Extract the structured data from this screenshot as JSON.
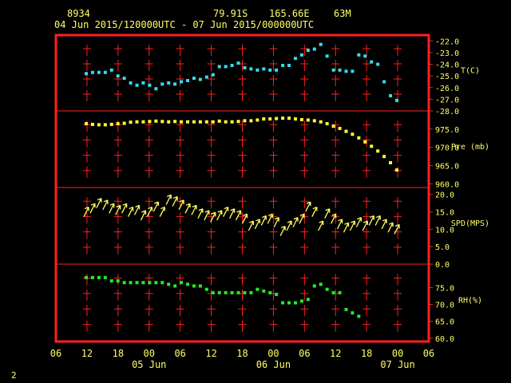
{
  "header": {
    "station_id": "8934",
    "lat": "79.91S",
    "lon": "165.66E",
    "elev": "63M",
    "time_range": "04 Jun 2015/120000UTC - 07 Jun 2015/000000UTC"
  },
  "footer": {
    "page_number": "2"
  },
  "colors": {
    "frame": "#ff2020",
    "text": "#ffff66",
    "temp": "#33ddee",
    "pres": "#ffff33",
    "wind": "#ffff66",
    "rh": "#22ee22"
  },
  "chart_data": {
    "type": "scatter",
    "x_ticks": [
      "06",
      "12",
      "18",
      "00",
      "06",
      "12",
      "18",
      "00",
      "06",
      "12",
      "18",
      "00",
      "06"
    ],
    "date_labels": [
      "05 Jun",
      "06 Jun",
      "07 Jun"
    ],
    "x_range_hours": [
      -6,
      66
    ],
    "panels": [
      {
        "name": "temperature",
        "ylabel": "T(C)",
        "ylim": [
          -28.0,
          -21.5
        ],
        "ticks": [
          -22.0,
          -23.0,
          -24.0,
          -25.0,
          -26.0,
          -27.0,
          -28.0
        ],
        "points": [
          [
            1,
            -24.8
          ],
          [
            2,
            -24.7
          ],
          [
            3,
            -24.7
          ],
          [
            4,
            -24.7
          ],
          [
            5,
            -24.5
          ],
          [
            6,
            -25.0
          ],
          [
            7,
            -25.2
          ],
          [
            8,
            -25.6
          ],
          [
            9,
            -25.8
          ],
          [
            10,
            -25.6
          ],
          [
            11,
            -25.8
          ],
          [
            12,
            -26.1
          ],
          [
            13,
            -25.7
          ],
          [
            14,
            -25.6
          ],
          [
            15,
            -25.7
          ],
          [
            16,
            -25.5
          ],
          [
            17,
            -25.4
          ],
          [
            18,
            -25.2
          ],
          [
            19,
            -25.3
          ],
          [
            20,
            -25.1
          ],
          [
            21,
            -24.9
          ],
          [
            22,
            -24.2
          ],
          [
            23,
            -24.2
          ],
          [
            24,
            -24.1
          ],
          [
            25,
            -23.9
          ],
          [
            26,
            -24.3
          ],
          [
            27,
            -24.4
          ],
          [
            28,
            -24.5
          ],
          [
            29,
            -24.4
          ],
          [
            30,
            -24.5
          ],
          [
            31,
            -24.5
          ],
          [
            32,
            -24.1
          ],
          [
            33,
            -24.1
          ],
          [
            34,
            -23.5
          ],
          [
            35,
            -23.2
          ],
          [
            36,
            -22.8
          ],
          [
            37,
            -22.7
          ],
          [
            38,
            -22.3
          ],
          [
            39,
            -23.3
          ],
          [
            40,
            -24.5
          ],
          [
            41,
            -24.5
          ],
          [
            42,
            -24.6
          ],
          [
            43,
            -24.6
          ],
          [
            44,
            -23.2
          ],
          [
            45,
            -23.3
          ],
          [
            46,
            -23.8
          ],
          [
            47,
            -24.0
          ],
          [
            48,
            -25.5
          ],
          [
            49,
            -26.7
          ],
          [
            50,
            -27.1
          ]
        ],
        "value_format": "1"
      },
      {
        "name": "pressure",
        "ylabel": "Pre (mb)",
        "ylim": [
          959.0,
          980.0
        ],
        "ticks": [
          975.0,
          970.0,
          965.0,
          960.0
        ],
        "points": [
          [
            1,
            976.5
          ],
          [
            2,
            976.3
          ],
          [
            3,
            976.2
          ],
          [
            4,
            976.2
          ],
          [
            5,
            976.3
          ],
          [
            6,
            976.5
          ],
          [
            7,
            976.6
          ],
          [
            8,
            976.9
          ],
          [
            9,
            977.0
          ],
          [
            10,
            977.0
          ],
          [
            11,
            977.1
          ],
          [
            12,
            977.2
          ],
          [
            13,
            977.1
          ],
          [
            14,
            977.0
          ],
          [
            15,
            977.1
          ],
          [
            16,
            977.0
          ],
          [
            17,
            977.0
          ],
          [
            18,
            977.0
          ],
          [
            19,
            977.0
          ],
          [
            20,
            977.0
          ],
          [
            21,
            977.0
          ],
          [
            22,
            977.2
          ],
          [
            23,
            977.0
          ],
          [
            24,
            977.0
          ],
          [
            25,
            977.1
          ],
          [
            26,
            977.3
          ],
          [
            27,
            977.3
          ],
          [
            28,
            977.5
          ],
          [
            29,
            977.8
          ],
          [
            30,
            977.8
          ],
          [
            31,
            977.9
          ],
          [
            32,
            978.0
          ],
          [
            33,
            978.0
          ],
          [
            34,
            977.8
          ],
          [
            35,
            977.6
          ],
          [
            36,
            977.5
          ],
          [
            37,
            977.3
          ],
          [
            38,
            977.0
          ],
          [
            39,
            976.5
          ],
          [
            40,
            975.8
          ],
          [
            41,
            975.2
          ],
          [
            42,
            974.4
          ],
          [
            43,
            973.6
          ],
          [
            44,
            972.6
          ],
          [
            45,
            971.5
          ],
          [
            46,
            970.3
          ],
          [
            47,
            969.0
          ],
          [
            48,
            967.5
          ],
          [
            49,
            965.8
          ],
          [
            50,
            963.8
          ]
        ]
      },
      {
        "name": "wind_speed",
        "ylabel": "SPD(MPS)",
        "ylim": [
          0.0,
          22.0
        ],
        "ticks": [
          20.0,
          15.0,
          10.0,
          5.0,
          0.0
        ],
        "points": [
          [
            1,
            15.0
          ],
          [
            2,
            16.0
          ],
          [
            3,
            17.5
          ],
          [
            4,
            17.0
          ],
          [
            5,
            16.0
          ],
          [
            6,
            15.5
          ],
          [
            7,
            16.0
          ],
          [
            8,
            15.0
          ],
          [
            9,
            15.5
          ],
          [
            10,
            14.0
          ],
          [
            11,
            15.0
          ],
          [
            12,
            16.5
          ],
          [
            13,
            15.0
          ],
          [
            14,
            18.5
          ],
          [
            15,
            18.0
          ],
          [
            16,
            17.0
          ],
          [
            17,
            16.0
          ],
          [
            18,
            15.5
          ],
          [
            19,
            14.5
          ],
          [
            20,
            14.0
          ],
          [
            21,
            13.5
          ],
          [
            22,
            14.0
          ],
          [
            23,
            15.0
          ],
          [
            24,
            14.5
          ],
          [
            25,
            14.0
          ],
          [
            26,
            13.0
          ],
          [
            27,
            11.0
          ],
          [
            28,
            11.5
          ],
          [
            29,
            12.5
          ],
          [
            30,
            13.0
          ],
          [
            31,
            12.0
          ],
          [
            32,
            9.5
          ],
          [
            33,
            11.0
          ],
          [
            34,
            12.0
          ],
          [
            35,
            13.0
          ],
          [
            36,
            16.5
          ],
          [
            37,
            15.0
          ],
          [
            38,
            11.0
          ],
          [
            39,
            14.5
          ],
          [
            40,
            13.0
          ],
          [
            41,
            11.5
          ],
          [
            42,
            10.5
          ],
          [
            43,
            11.0
          ],
          [
            44,
            12.0
          ],
          [
            45,
            11.0
          ],
          [
            46,
            12.5
          ],
          [
            47,
            12.5
          ],
          [
            48,
            11.5
          ],
          [
            49,
            10.5
          ],
          [
            50,
            10.0
          ]
        ]
      },
      {
        "name": "relative_humidity",
        "ylabel": "RH(%)",
        "ylim": [
          59.0,
          82.0
        ],
        "ticks": [
          75.0,
          70.0,
          65.0,
          60.0
        ],
        "points": [
          [
            1,
            78.0
          ],
          [
            2,
            78.0
          ],
          [
            3,
            78.0
          ],
          [
            4,
            78.0
          ],
          [
            5,
            77.0
          ],
          [
            6,
            77.0
          ],
          [
            7,
            76.5
          ],
          [
            8,
            76.5
          ],
          [
            9,
            76.5
          ],
          [
            10,
            76.5
          ],
          [
            11,
            76.5
          ],
          [
            12,
            76.5
          ],
          [
            13,
            76.5
          ],
          [
            14,
            76.0
          ],
          [
            15,
            75.5
          ],
          [
            16,
            76.5
          ],
          [
            17,
            76.0
          ],
          [
            18,
            75.5
          ],
          [
            19,
            75.5
          ],
          [
            20,
            74.5
          ],
          [
            21,
            73.5
          ],
          [
            22,
            73.5
          ],
          [
            23,
            73.5
          ],
          [
            24,
            73.5
          ],
          [
            25,
            73.5
          ],
          [
            26,
            73.5
          ],
          [
            27,
            73.5
          ],
          [
            28,
            74.5
          ],
          [
            29,
            74.0
          ],
          [
            30,
            73.5
          ],
          [
            31,
            73.0
          ],
          [
            32,
            70.5
          ],
          [
            33,
            70.5
          ],
          [
            34,
            70.5
          ],
          [
            35,
            71.0
          ],
          [
            36,
            71.5
          ],
          [
            37,
            75.5
          ],
          [
            38,
            76.0
          ],
          [
            39,
            74.5
          ],
          [
            40,
            73.5
          ],
          [
            41,
            73.5
          ],
          [
            42,
            68.5
          ],
          [
            43,
            67.5
          ],
          [
            44,
            66.5
          ]
        ]
      }
    ]
  }
}
